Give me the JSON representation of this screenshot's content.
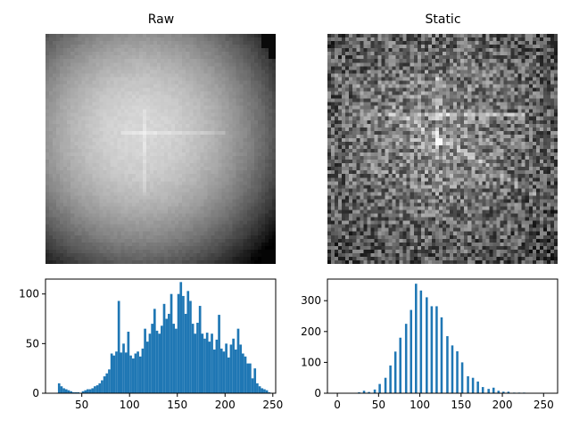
{
  "chart_data": [
    {
      "type": "image",
      "title": "Raw",
      "colormap": "gray",
      "description_values": "grayscale image, brighter center"
    },
    {
      "type": "image",
      "title": "Static",
      "colormap": "gray",
      "description_values": "grayscale image, noisy texture"
    },
    {
      "type": "bar",
      "subtype": "histogram",
      "title": "",
      "color": "#1f77b4",
      "xlim": [
        12,
        253
      ],
      "ylim": [
        0,
        115
      ],
      "xticks": [
        50,
        100,
        150,
        200,
        250
      ],
      "yticks": [
        0,
        50,
        100
      ],
      "bin_width": 2.5,
      "bins": [
        [
          25,
          10
        ],
        [
          27.5,
          7
        ],
        [
          30,
          5
        ],
        [
          32.5,
          4
        ],
        [
          35,
          3
        ],
        [
          37.5,
          2
        ],
        [
          40,
          1
        ],
        [
          42.5,
          1
        ],
        [
          45,
          1
        ],
        [
          50,
          2
        ],
        [
          52.5,
          3
        ],
        [
          55,
          4
        ],
        [
          57.5,
          4
        ],
        [
          60,
          5
        ],
        [
          62.5,
          7
        ],
        [
          65,
          8
        ],
        [
          67.5,
          10
        ],
        [
          70,
          13
        ],
        [
          72.5,
          17
        ],
        [
          75,
          20
        ],
        [
          77.5,
          24
        ],
        [
          80,
          40
        ],
        [
          82.5,
          38
        ],
        [
          85,
          42
        ],
        [
          87.5,
          93
        ],
        [
          90,
          41
        ],
        [
          92.5,
          50
        ],
        [
          95,
          41
        ],
        [
          97.5,
          62
        ],
        [
          100,
          38
        ],
        [
          102.5,
          35
        ],
        [
          105,
          40
        ],
        [
          107.5,
          42
        ],
        [
          110,
          37
        ],
        [
          112.5,
          45
        ],
        [
          115,
          65
        ],
        [
          117.5,
          52
        ],
        [
          120,
          60
        ],
        [
          122.5,
          70
        ],
        [
          125,
          85
        ],
        [
          127.5,
          63
        ],
        [
          130,
          60
        ],
        [
          132.5,
          68
        ],
        [
          135,
          90
        ],
        [
          137.5,
          75
        ],
        [
          140,
          80
        ],
        [
          142.5,
          100
        ],
        [
          145,
          70
        ],
        [
          147.5,
          65
        ],
        [
          150,
          100
        ],
        [
          152.5,
          112
        ],
        [
          155,
          98
        ],
        [
          157.5,
          80
        ],
        [
          160,
          103
        ],
        [
          162.5,
          93
        ],
        [
          165,
          70
        ],
        [
          167.5,
          60
        ],
        [
          170,
          71
        ],
        [
          172.5,
          88
        ],
        [
          175,
          60
        ],
        [
          177.5,
          55
        ],
        [
          180,
          61
        ],
        [
          182.5,
          52
        ],
        [
          185,
          60
        ],
        [
          187.5,
          44
        ],
        [
          190,
          54
        ],
        [
          192.5,
          79
        ],
        [
          195,
          45
        ],
        [
          197.5,
          42
        ],
        [
          200,
          50
        ],
        [
          202.5,
          36
        ],
        [
          205,
          49
        ],
        [
          207.5,
          55
        ],
        [
          210,
          44
        ],
        [
          212.5,
          65
        ],
        [
          215,
          49
        ],
        [
          217.5,
          40
        ],
        [
          220,
          37
        ],
        [
          222.5,
          30
        ],
        [
          225,
          30
        ],
        [
          227.5,
          15
        ],
        [
          230,
          25
        ],
        [
          232.5,
          10
        ],
        [
          235,
          7
        ],
        [
          237.5,
          5
        ],
        [
          240,
          4
        ],
        [
          242.5,
          3
        ],
        [
          245,
          1
        ]
      ]
    },
    {
      "type": "bar",
      "subtype": "histogram",
      "title": "",
      "color": "#1f77b4",
      "xlim": [
        -12,
        267
      ],
      "ylim": [
        0,
        370
      ],
      "xticks": [
        0,
        50,
        100,
        150,
        200,
        250
      ],
      "yticks": [
        0,
        100,
        200,
        300
      ],
      "bin_width": 2.5,
      "bins": [
        [
          0,
          1
        ],
        [
          25,
          3
        ],
        [
          31,
          8
        ],
        [
          37,
          4
        ],
        [
          44,
          12
        ],
        [
          50,
          30
        ],
        [
          57,
          50
        ],
        [
          63,
          90
        ],
        [
          69,
          135
        ],
        [
          75,
          180
        ],
        [
          82,
          225
        ],
        [
          88,
          270
        ],
        [
          94,
          355
        ],
        [
          100,
          333
        ],
        [
          107,
          311
        ],
        [
          113,
          282
        ],
        [
          119,
          282
        ],
        [
          125,
          246
        ],
        [
          132,
          185
        ],
        [
          138,
          155
        ],
        [
          144,
          136
        ],
        [
          150,
          100
        ],
        [
          157,
          55
        ],
        [
          163,
          50
        ],
        [
          169,
          38
        ],
        [
          175,
          20
        ],
        [
          182,
          14
        ],
        [
          188,
          18
        ],
        [
          194,
          8
        ],
        [
          200,
          5
        ],
        [
          206,
          5
        ],
        [
          213,
          2
        ],
        [
          219,
          2
        ],
        [
          225,
          2
        ],
        [
          250,
          1
        ]
      ]
    }
  ]
}
